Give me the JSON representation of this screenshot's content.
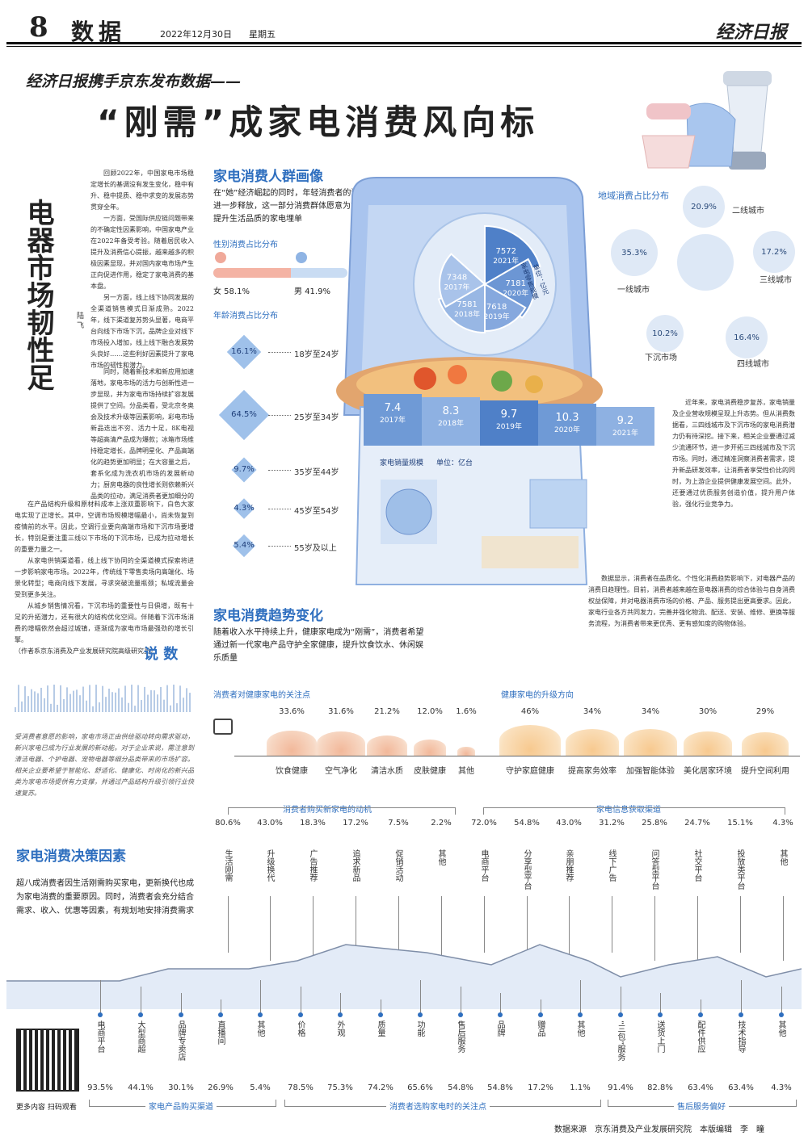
{
  "masthead": {
    "page_number": "8",
    "section": "数据",
    "date": "2022年12月30日",
    "weekday": "星期五",
    "paper_name": "经济日报"
  },
  "headline": {
    "kicker": "经济日报携手京东发布数据——",
    "title": "“刚需”成家电消费风向标"
  },
  "commentary": {
    "side_title": "电器市场韧性足",
    "author": "陆 飞",
    "paragraphs": [
      "回顾2022年，中国家电市场稳定增长的基调没有发生变化，稳中有升、稳中提质、稳中求变的发展态势贯穿全年。",
      "一方面，受国际供应链问题带来的不确定性因素影响，中国家电产业在2022年备受考验。随着居民收入提升及消费信心提振，越来越多的积极因素显现，并对国内家电市场产生正向促进作用，稳定了家电消费的基本盘。",
      "另一方面，线上线下协同发展的全渠道销售模式日渐成熟。2022年，线下渠道复苏势头显著，电商平台向线下市场下沉，品牌企业对线下市场投入增加，线上线下融合发展势头良好……这些利好因素提升了家电市场的韧性和潜力。",
      "同时，随着新技术和新应用加速落地，家电市场的活力与创新性进一步显现，并为家电市场持续扩容发展提供了空间。分品类看，受北京冬奥会及技术升级等因素影响，彩电市场新品迭出不穷、活力十足，8K电视等超高清产品成为爆款；冰箱市场维持稳定增长，品牌明星化、产品高端化的趋势更加明显；在大容量之后，套系化成为洗衣机市场的发展新动力；厨房电器的良性增长则依赖新兴品类的拉动，满足消费者更加细分的需求是相关企业发展的机会所在。",
      "在产品结构升级和原材料成本上涨双重影响下，白色大家电实现了正增长。其中，空调市场规模增幅最小，尚未恢复到疫情前的水平。因此，空调行业要向高端市场和下沉市场要增长，特别是要注重三线以下市场的下沉市场，已成为拉动增长的重要力量之一。",
      "从家电供销渠道看，线上线下协同的全渠道模式探索将进一步影响家电市场。2022年，传统线下零售卖场向高端化、场景化转型；电商向线下发展，寻求突破流量瓶颈；私域流量会受到更多关注。",
      "从城乡销售情况看，下沉市场的重要性与日俱增，既有十足的升拓潜力，还有很大的结构优化空间。伴随着下沉市场消费的增幅依然会超过城镇，逐渐成为家电市场最强劲的增长引擎。",
      "（作者系京东消费及产业发展研究院高级研究员）"
    ]
  },
  "shuoshu": {
    "title": "说 数",
    "text": "受消费者意愿的影响，家电市场正由供给驱动转向需求驱动，新兴家电已成为行业发展的新动能。对于企业来说，需注意到清洁电器、个护电器、宠物电器等细分品类带来的市场扩容。相关企业要希望于智能化、舒适化、健康化、时尚化的新兴品类为家电市场提供有力支撑，并通过产品结构升级引领行业快速复苏。"
  },
  "portrait": {
    "title": "家电消费人群画像",
    "desc": "在“她”经济崛起的同时，年轻消费者的潜力进一步释放，这一部分消费群体愿意为能够提升生活品质的家电埋单",
    "gender_title": "性别消费占比分布",
    "female": "女 58.1%",
    "male": "男 41.9%",
    "female_share": 58.1,
    "age_title": "年龄消费占比分布",
    "ages": [
      {
        "pct": "16.1%",
        "label": "18岁至24岁"
      },
      {
        "pct": "64.5%",
        "label": "25岁至34岁"
      },
      {
        "pct": "9.7%",
        "label": "35岁至44岁"
      },
      {
        "pct": "4.3%",
        "label": "45岁至54岁"
      },
      {
        "pct": "5.4%",
        "label": "55岁及以上"
      }
    ]
  },
  "region": {
    "title": "地域消费占比分布",
    "items": [
      {
        "pct": "20.9%",
        "label": "二线城市"
      },
      {
        "pct": "35.3%",
        "label": "一线城市"
      },
      {
        "pct": "17.2%",
        "label": "三线城市"
      },
      {
        "pct": "10.2%",
        "label": "下沉市场"
      },
      {
        "pct": "16.4%",
        "label": "四线城市"
      }
    ]
  },
  "pie_sales": {
    "label": "家电零售规模",
    "unit": "单位：亿元",
    "slices": [
      {
        "value": "7572",
        "year": "2021年"
      },
      {
        "value": "7181",
        "year": "2020年"
      },
      {
        "value": "7618",
        "year": "2019年"
      },
      {
        "value": "7581",
        "year": "2018年"
      },
      {
        "value": "7348",
        "year": "2017年"
      }
    ]
  },
  "bar_sales": {
    "label": "家电销量规模",
    "unit": "单位：亿台",
    "items": [
      {
        "value": "7.4",
        "year": "2017年"
      },
      {
        "value": "8.3",
        "year": "2018年"
      },
      {
        "value": "9.7",
        "year": "2019年"
      },
      {
        "value": "10.3",
        "year": "2020年"
      },
      {
        "value": "9.2",
        "year": "2021年"
      }
    ]
  },
  "right_text": {
    "p1": "近年来，家电消费稳步复苏，家电销量及企业营收规模呈现上升态势。但从消费数据看，三四线城市及下沉市场的家电消费潜力仍有待深挖。接下来，相关企业要通过减少流通环节，进一步开拓三四线城市及下沉市场。同时，通过精准洞察消费者需求，提升新品研发效率，让消费者享受性价比的同时，为上游企业提供健康发展空间。此外，还要通过优质服务创造价值，提升用户体验，强化行业竞争力。",
    "p2": "数据显示，消费者在品质化、个性化消费趋势影响下，对电器产品的消费日趋理性。目前，消费者越来越在意电器消费的综合体验与自身消费权益保障，并对电器消费市场的价格、产品、服务提出更高要求。因此，家电行业各方共同发力，完善并强化物流、配送、安装、维修、更换等服务流程，为消费者带来更优秀、更有感知度的购物体验。"
  },
  "trend": {
    "title": "家电消费趋势变化",
    "desc": "随着收入水平持续上升，健康家电成为“刚需”，消费者希望通过新一代家电产品守护全家健康，提升饮食饮水、休闲娱乐质量"
  },
  "health_focus": {
    "title": "消费者对健康家电的关注点",
    "items": [
      {
        "pct": "33.6%",
        "label": "饮食健康"
      },
      {
        "pct": "31.6%",
        "label": "空气净化"
      },
      {
        "pct": "21.2%",
        "label": "清洁水质"
      },
      {
        "pct": "12.0%",
        "label": "皮肤健康"
      },
      {
        "pct": "1.6%",
        "label": "其他"
      }
    ]
  },
  "health_upgrade": {
    "title": "健康家电的升级方向",
    "items": [
      {
        "pct": "46%",
        "label": "守护家庭健康"
      },
      {
        "pct": "34%",
        "label": "提高家务效率"
      },
      {
        "pct": "34%",
        "label": "加强智能体验"
      },
      {
        "pct": "30%",
        "label": "美化居家环境"
      },
      {
        "pct": "29%",
        "label": "提升空间利用"
      }
    ]
  },
  "decision": {
    "title": "家电消费决策因素",
    "desc": "超八成消费者因生活刚需购买家电，更新换代也成为家电消费的重要原因。同时，消费者会充分结合需求、收入、优惠等因素，有规划地安排消费需求"
  },
  "motive": {
    "title": "消费者购买新家电的动机",
    "items": [
      {
        "pct": "80.6%",
        "label": "生活刚需"
      },
      {
        "pct": "43.0%",
        "label": "升级换代"
      },
      {
        "pct": "18.3%",
        "label": "广告推荐"
      },
      {
        "pct": "17.2%",
        "label": "追求新品"
      },
      {
        "pct": "7.5%",
        "label": "促销活动"
      },
      {
        "pct": "2.2%",
        "label": "其他"
      }
    ]
  },
  "info_channel": {
    "title": "家电信息获取渠道",
    "items": [
      {
        "pct": "72.0%",
        "label": "电商平台"
      },
      {
        "pct": "54.8%",
        "label": "分享型平台"
      },
      {
        "pct": "43.0%",
        "label": "亲朋推荐"
      },
      {
        "pct": "31.2%",
        "label": "线下广告"
      },
      {
        "pct": "25.8%",
        "label": "问答型平台"
      },
      {
        "pct": "24.7%",
        "label": "社交平台"
      },
      {
        "pct": "15.1%",
        "label": "投放类平台"
      },
      {
        "pct": "4.3%",
        "label": "其他"
      }
    ]
  },
  "buy_channel": {
    "title": "家电产品购买渠道",
    "items": [
      {
        "pct": "93.5%",
        "label": "电商平台"
      },
      {
        "pct": "44.1%",
        "label": "大型商超"
      },
      {
        "pct": "30.1%",
        "label": "品牌专卖店"
      },
      {
        "pct": "26.9%",
        "label": "直播间"
      },
      {
        "pct": "5.4%",
        "label": "其他"
      }
    ]
  },
  "focus": {
    "title": "消费者选购家电时的关注点",
    "items": [
      {
        "pct": "78.5%",
        "label": "价格"
      },
      {
        "pct": "75.3%",
        "label": "外观"
      },
      {
        "pct": "74.2%",
        "label": "质量"
      },
      {
        "pct": "65.6%",
        "label": "功能"
      },
      {
        "pct": "54.8%",
        "label": "售后服务"
      },
      {
        "pct": "54.8%",
        "label": "品牌"
      },
      {
        "pct": "17.2%",
        "label": "赠品"
      },
      {
        "pct": "1.1%",
        "label": "其他"
      }
    ]
  },
  "service": {
    "title": "售后服务偏好",
    "items": [
      {
        "pct": "91.4%",
        "label": "“三包”服务"
      },
      {
        "pct": "82.8%",
        "label": "送货上门"
      },
      {
        "pct": "63.4%",
        "label": "配件供应"
      },
      {
        "pct": "63.4%",
        "label": "技术指导"
      },
      {
        "pct": "4.3%",
        "label": "其他"
      }
    ]
  },
  "qr": {
    "caption": "更多内容 扫码观看"
  },
  "footer": "数据来源　京东消费及产业发展研究院　本版编辑　李　瞳",
  "colors": {
    "accent": "#2f6fbf",
    "light_blue": "#9fc1ea",
    "orange": "#f2b89a"
  }
}
